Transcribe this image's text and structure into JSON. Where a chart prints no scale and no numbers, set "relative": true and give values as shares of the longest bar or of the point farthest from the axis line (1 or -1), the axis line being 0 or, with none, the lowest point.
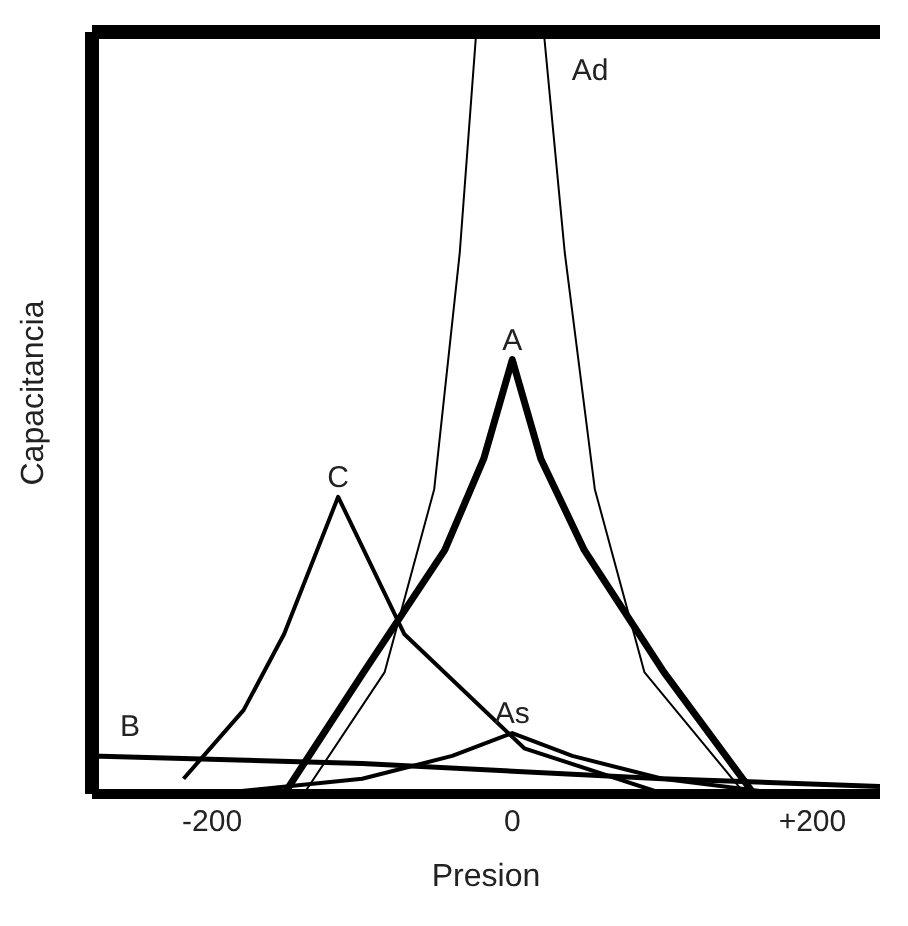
{
  "chart_data": {
    "type": "line",
    "relative": true,
    "xlabel": "Presion",
    "ylabel": "Capacitancia",
    "xlim": [
      -280,
      245
    ],
    "xticks": [
      -200,
      0,
      {
        "value": 200,
        "label": "+200"
      }
    ],
    "marker": "none",
    "line_style": "solid",
    "series": [
      {
        "name": "Ad",
        "color": "#000000",
        "x": [
          -139,
          -85,
          -52,
          -35,
          -24,
          21,
          35,
          55,
          88,
          155
        ],
        "values": [
          0,
          0.16,
          0.4,
          0.71,
          1,
          1,
          0.71,
          0.4,
          0.16,
          0
        ]
      },
      {
        "name": "A",
        "color": "#000000",
        "x": [
          -152,
          -99,
          -45,
          -19,
          0,
          19,
          48,
          101,
          161
        ],
        "values": [
          0,
          0.16,
          0.32,
          0.44,
          0.57,
          0.44,
          0.32,
          0.16,
          0
        ]
      },
      {
        "name": "C",
        "color": "#000000",
        "x": [
          -219,
          -179,
          -152,
          -116,
          -72,
          8,
          101
        ],
        "values": [
          0.02,
          0.11,
          0.21,
          0.39,
          0.21,
          0.06,
          0
        ]
      },
      {
        "name": "As",
        "color": "#000000",
        "x": [
          -200,
          -100,
          -40,
          0,
          40,
          100,
          181
        ],
        "values": [
          0,
          0.02,
          0.05,
          0.08,
          0.05,
          0.02,
          0
        ]
      },
      {
        "name": "B",
        "color": "#000000",
        "x": [
          -280,
          -100,
          100,
          245
        ],
        "values": [
          0.05,
          0.04,
          0.02,
          0.01
        ]
      }
    ]
  }
}
